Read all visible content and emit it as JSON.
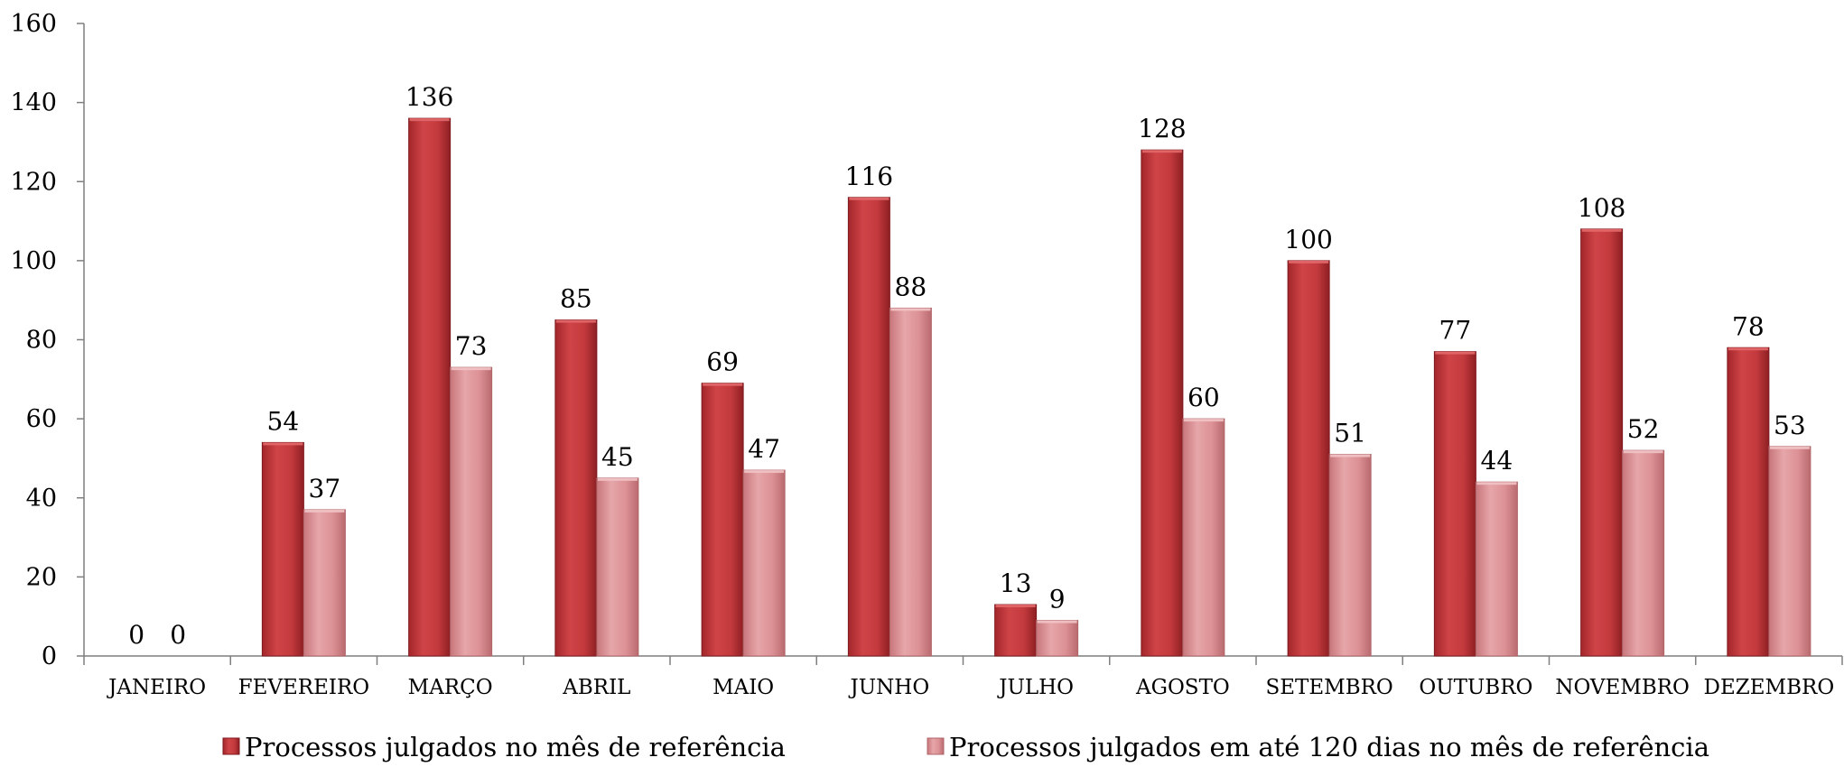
{
  "chart_data": {
    "type": "bar",
    "title": "",
    "xlabel": "",
    "ylabel": "",
    "ylim": [
      0,
      160
    ],
    "yticks": [
      0,
      20,
      40,
      60,
      80,
      100,
      120,
      140,
      160
    ],
    "grid": false,
    "legend_position": "bottom",
    "categories": [
      "JANEIRO",
      "FEVEREIRO",
      "MARÇO",
      "ABRIL",
      "MAIO",
      "JUNHO",
      "JULHO",
      "AGOSTO",
      "SETEMBRO",
      "OUTUBRO",
      "NOVEMBRO",
      "DEZEMBRO"
    ],
    "series": [
      {
        "name": "Processos julgados no mês de referência",
        "color": "#c0393b",
        "values": [
          0,
          54,
          136,
          85,
          69,
          116,
          13,
          128,
          100,
          77,
          108,
          78
        ]
      },
      {
        "name": "Processos julgados em até 120 dias no mês de referência",
        "color": "#d98a8e",
        "values": [
          0,
          37,
          73,
          45,
          47,
          88,
          9,
          60,
          51,
          44,
          52,
          53
        ]
      }
    ],
    "data_labels": true
  }
}
